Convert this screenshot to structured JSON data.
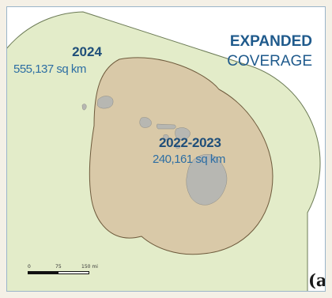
{
  "title": {
    "line1": "EXPANDED",
    "line2": "COVERAGE"
  },
  "coverage_2024": {
    "year": "2024",
    "area": "555,137 sq km",
    "fill_color": "#e3ecc9",
    "stroke_color": "#6b7a55"
  },
  "coverage_2022_2023": {
    "year": "2022-2023",
    "area": "240,161 sq km",
    "fill_color": "#d9c9a8",
    "stroke_color": "#6e5a3c"
  },
  "island_color": "#b7b7b2",
  "scale_bar": {
    "tick_0": "0",
    "tick_75": "75",
    "tick_150": "150 mi"
  },
  "panel_letter": "(a)"
}
